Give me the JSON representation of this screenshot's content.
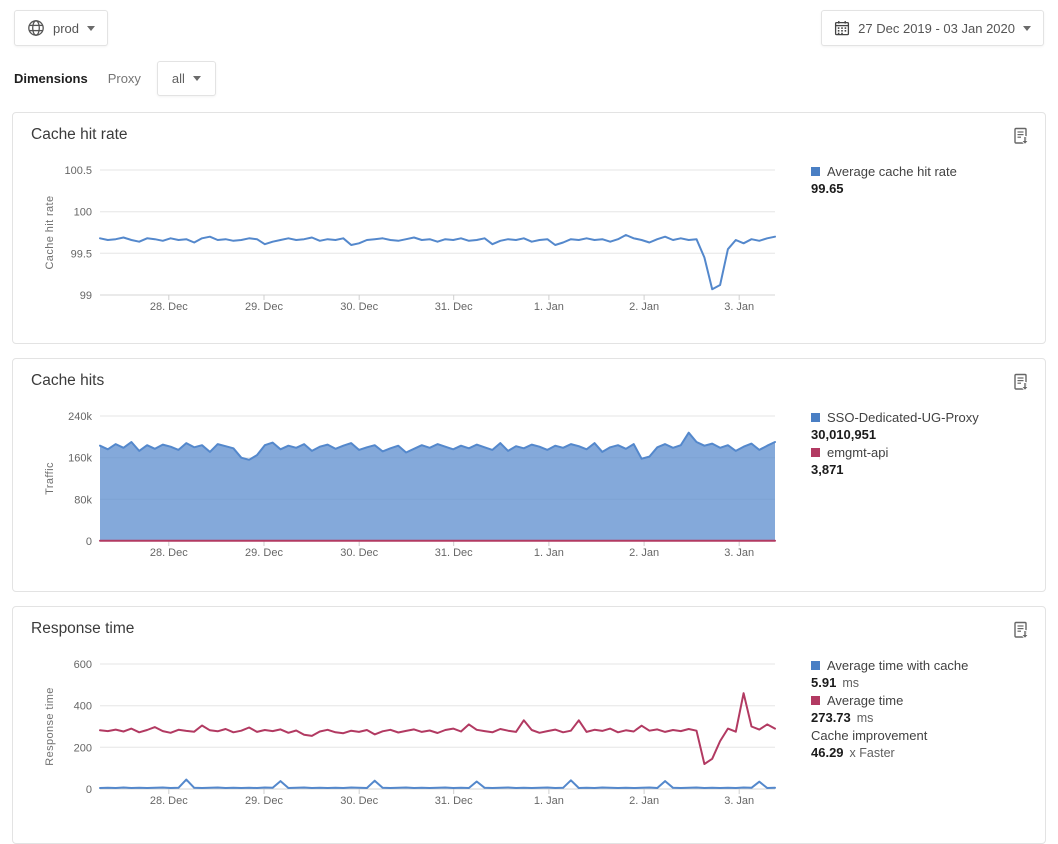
{
  "header": {
    "environment": "prod",
    "date_range": "27 Dec 2019 - 03 Jan 2020"
  },
  "filters": {
    "dimensions_label": "Dimensions",
    "dimension_name": "Proxy",
    "selected_value": "all"
  },
  "colors": {
    "blue": "#5488cc",
    "red": "#b23a62",
    "area_fill": "rgba(84,136,204,0.72)"
  },
  "panels": [
    {
      "title": "Cache hit rate",
      "legend": [
        {
          "swatch": "#4a7fc4",
          "label": "Average cache hit rate",
          "value": "99.65",
          "suffix": ""
        }
      ]
    },
    {
      "title": "Cache hits",
      "legend": [
        {
          "swatch": "#4a7fc4",
          "label": "SSO-Dedicated-UG-Proxy",
          "value": "30,010,951",
          "suffix": ""
        },
        {
          "swatch": "#b23a62",
          "label": "emgmt-api",
          "value": "3,871",
          "suffix": ""
        }
      ]
    },
    {
      "title": "Response time",
      "legend": [
        {
          "swatch": "#4a7fc4",
          "label": "Average time with cache",
          "value": "5.91",
          "suffix": "ms"
        },
        {
          "swatch": "#b23a62",
          "label": "Average time",
          "value": "273.73",
          "suffix": "ms"
        },
        {
          "swatch": null,
          "label": "Cache improvement",
          "value": "46.29",
          "suffix": "x Faster"
        }
      ]
    }
  ],
  "chart_data": [
    {
      "type": "line",
      "title": "Cache hit rate",
      "ylabel": "Cache hit rate",
      "ylim": [
        99,
        100.5
      ],
      "grid": true,
      "legend_position": "right",
      "y_ticks": [
        {
          "label": "100.5",
          "value": 100.5
        },
        {
          "label": "100",
          "value": 100
        },
        {
          "label": "99.5",
          "value": 99.5
        },
        {
          "label": "99",
          "value": 99
        }
      ],
      "x_ticks": [
        {
          "label": "28. Dec",
          "pos": 0.102
        },
        {
          "label": "29. Dec",
          "pos": 0.243
        },
        {
          "label": "30. Dec",
          "pos": 0.384
        },
        {
          "label": "31. Dec",
          "pos": 0.524
        },
        {
          "label": "1. Jan",
          "pos": 0.665
        },
        {
          "label": "2. Jan",
          "pos": 0.806
        },
        {
          "label": "3. Jan",
          "pos": 0.947
        }
      ],
      "series": [
        {
          "name": "Average cache hit rate",
          "type": "line",
          "color": "#5488cc",
          "values": [
            99.68,
            99.66,
            99.67,
            99.69,
            99.66,
            99.64,
            99.68,
            99.67,
            99.65,
            99.68,
            99.66,
            99.67,
            99.63,
            99.68,
            99.7,
            99.66,
            99.67,
            99.65,
            99.66,
            99.68,
            99.67,
            99.61,
            99.64,
            99.66,
            99.68,
            99.66,
            99.67,
            99.69,
            99.65,
            99.67,
            99.66,
            99.68,
            99.6,
            99.62,
            99.66,
            99.67,
            99.68,
            99.66,
            99.65,
            99.67,
            99.69,
            99.66,
            99.67,
            99.64,
            99.67,
            99.66,
            99.68,
            99.65,
            99.66,
            99.68,
            99.61,
            99.65,
            99.67,
            99.66,
            99.68,
            99.64,
            99.66,
            99.67,
            99.6,
            99.63,
            99.67,
            99.66,
            99.68,
            99.66,
            99.67,
            99.64,
            99.67,
            99.72,
            99.68,
            99.66,
            99.63,
            99.67,
            99.7,
            99.66,
            99.68,
            99.66,
            99.67,
            99.45,
            99.07,
            99.12,
            99.55,
            99.66,
            99.62,
            99.67,
            99.65,
            99.68,
            99.7
          ]
        }
      ]
    },
    {
      "type": "area",
      "title": "Cache hits",
      "ylabel": "Traffic",
      "ylim": [
        0,
        240000
      ],
      "grid": true,
      "legend_position": "right",
      "y_ticks": [
        {
          "label": "240k",
          "value": 240000
        },
        {
          "label": "160k",
          "value": 160000
        },
        {
          "label": "80k",
          "value": 80000
        },
        {
          "label": "0",
          "value": 0
        }
      ],
      "x_ticks": [
        {
          "label": "28. Dec",
          "pos": 0.102
        },
        {
          "label": "29. Dec",
          "pos": 0.243
        },
        {
          "label": "30. Dec",
          "pos": 0.384
        },
        {
          "label": "31. Dec",
          "pos": 0.524
        },
        {
          "label": "1. Jan",
          "pos": 0.665
        },
        {
          "label": "2. Jan",
          "pos": 0.806
        },
        {
          "label": "3. Jan",
          "pos": 0.947
        }
      ],
      "series": [
        {
          "name": "SSO-Dedicated-UG-Proxy",
          "type": "area",
          "color": "#5488cc",
          "fill": "rgba(84,136,204,0.72)",
          "values": [
            183000,
            176000,
            186000,
            179000,
            190000,
            173000,
            184000,
            177000,
            185000,
            181000,
            175000,
            188000,
            180000,
            184000,
            171000,
            186000,
            182000,
            178000,
            160000,
            156000,
            165000,
            184000,
            189000,
            176000,
            183000,
            179000,
            186000,
            173000,
            181000,
            185000,
            177000,
            183000,
            188000,
            175000,
            180000,
            184000,
            172000,
            178000,
            183000,
            170000,
            177000,
            184000,
            179000,
            186000,
            181000,
            176000,
            183000,
            178000,
            185000,
            180000,
            175000,
            188000,
            173000,
            182000,
            178000,
            185000,
            181000,
            175000,
            183000,
            179000,
            186000,
            182000,
            176000,
            188000,
            171000,
            180000,
            184000,
            177000,
            186000,
            158000,
            162000,
            180000,
            186000,
            179000,
            184000,
            208000,
            190000,
            183000,
            187000,
            179000,
            184000,
            173000,
            181000,
            187000,
            175000,
            183000,
            190000
          ]
        },
        {
          "name": "emgmt-api",
          "type": "line",
          "color": "#b23a62",
          "values": [
            450,
            450
          ]
        }
      ]
    },
    {
      "type": "line",
      "title": "Response time",
      "ylabel": "Response time",
      "ylim": [
        0,
        600
      ],
      "grid": true,
      "legend_position": "right",
      "y_ticks": [
        {
          "label": "600",
          "value": 600
        },
        {
          "label": "400",
          "value": 400
        },
        {
          "label": "200",
          "value": 200
        },
        {
          "label": "0",
          "value": 0
        }
      ],
      "x_ticks": [
        {
          "label": "28. Dec",
          "pos": 0.102
        },
        {
          "label": "29. Dec",
          "pos": 0.243
        },
        {
          "label": "30. Dec",
          "pos": 0.384
        },
        {
          "label": "31. Dec",
          "pos": 0.524
        },
        {
          "label": "1. Jan",
          "pos": 0.665
        },
        {
          "label": "2. Jan",
          "pos": 0.806
        },
        {
          "label": "3. Jan",
          "pos": 0.947
        }
      ],
      "series": [
        {
          "name": "Average time",
          "type": "line",
          "color": "#b23a62",
          "values": [
            282,
            278,
            285,
            276,
            290,
            272,
            283,
            297,
            278,
            270,
            284,
            279,
            275,
            305,
            282,
            277,
            288,
            272,
            280,
            295,
            274,
            283,
            278,
            286,
            270,
            281,
            260,
            255,
            276,
            284,
            272,
            268,
            280,
            274,
            283,
            262,
            277,
            284,
            271,
            279,
            286,
            274,
            281,
            269,
            283,
            290,
            276,
            310,
            284,
            278,
            272,
            288,
            280,
            274,
            330,
            283,
            270,
            278,
            285,
            272,
            280,
            330,
            274,
            284,
            279,
            290,
            272,
            282,
            276,
            304,
            280,
            286,
            274,
            283,
            278,
            288,
            280,
            120,
            145,
            230,
            290,
            275,
            460,
            300,
            285,
            310,
            290
          ]
        },
        {
          "name": "Average time with cache",
          "type": "line",
          "color": "#5488cc",
          "values": [
            5,
            6,
            5,
            7,
            5,
            6,
            5,
            6,
            7,
            5,
            6,
            45,
            6,
            5,
            6,
            7,
            5,
            6,
            5,
            6,
            5,
            7,
            6,
            38,
            5,
            6,
            7,
            5,
            6,
            5,
            6,
            5,
            7,
            6,
            5,
            40,
            6,
            5,
            6,
            7,
            5,
            6,
            5,
            6,
            7,
            5,
            6,
            5,
            36,
            6,
            5,
            6,
            7,
            5,
            6,
            5,
            6,
            7,
            5,
            6,
            42,
            5,
            6,
            5,
            7,
            6,
            5,
            6,
            5,
            6,
            7,
            5,
            38,
            6,
            5,
            6,
            7,
            5,
            6,
            5,
            6,
            5,
            7,
            6,
            35,
            5,
            6
          ]
        }
      ]
    }
  ]
}
